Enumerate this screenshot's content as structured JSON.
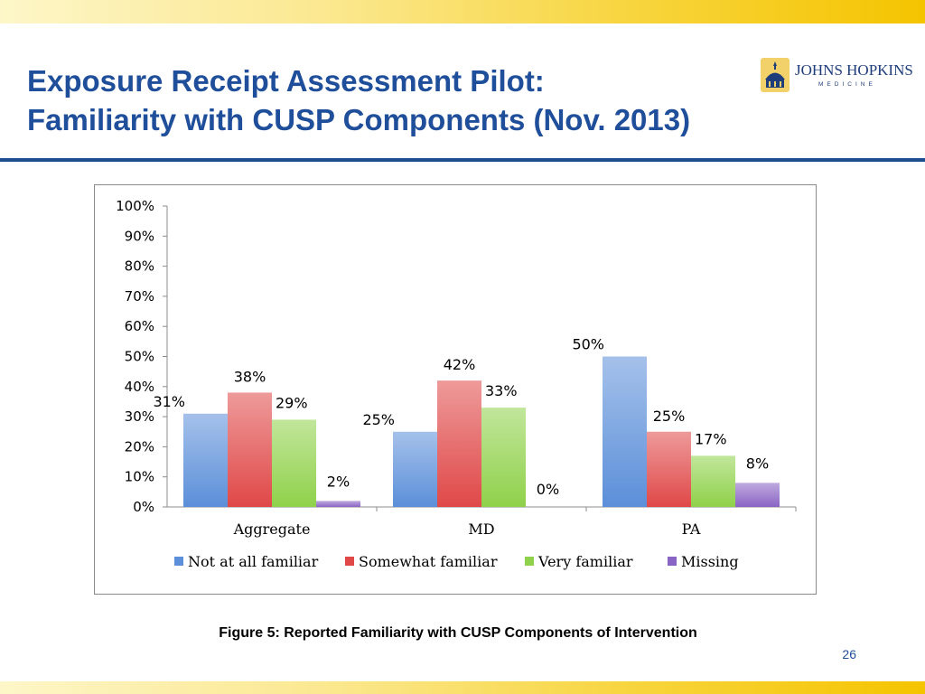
{
  "slide": {
    "title_line1": "Exposure Receipt Assessment Pilot:",
    "title_line2": "Familiarity with CUSP Components (Nov. 2013)",
    "caption": "Figure 5: Reported Familiarity with CUSP Components of Intervention",
    "page_number": "26",
    "logo": {
      "line1": "JOHNS HOPKINS",
      "line2": "MEDICINE",
      "icon": "dome-icon"
    },
    "colors": {
      "title": "#1f4e9a",
      "rule": "#1f4e8f",
      "band": "#f5c400"
    }
  },
  "chart_data": {
    "type": "bar",
    "categories": [
      "Aggregate",
      "MD",
      "PA"
    ],
    "series": [
      {
        "name": "Not at all familiar",
        "values": [
          31,
          25,
          50
        ],
        "labels": [
          "31%",
          "25%",
          "50%"
        ],
        "color": "#5b8fd9"
      },
      {
        "name": "Somewhat familiar",
        "values": [
          38,
          42,
          25
        ],
        "labels": [
          "38%",
          "42%",
          "25%"
        ],
        "color": "#e04848"
      },
      {
        "name": "Very familiar",
        "values": [
          29,
          33,
          17
        ],
        "labels": [
          "29%",
          "33%",
          "17%"
        ],
        "color": "#8fd14a"
      },
      {
        "name": "Missing",
        "values": [
          2,
          0,
          8
        ],
        "labels": [
          "2%",
          "0%",
          "8%"
        ],
        "color": "#8a64c4"
      }
    ],
    "ylim": [
      0,
      100
    ],
    "yticks": [
      "0%",
      "10%",
      "20%",
      "30%",
      "40%",
      "50%",
      "60%",
      "70%",
      "80%",
      "90%",
      "100%"
    ],
    "grid": false,
    "legend": "bottom"
  }
}
